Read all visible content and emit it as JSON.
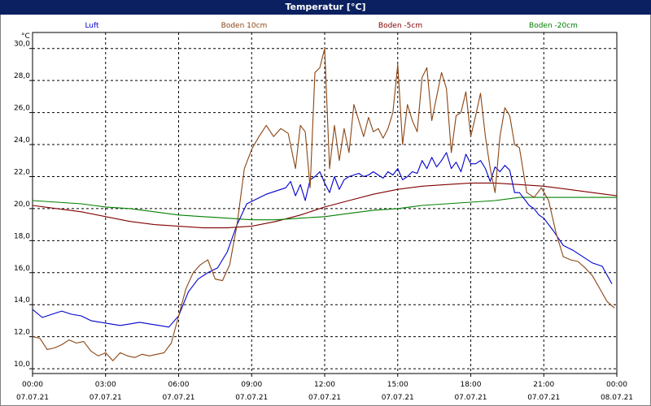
{
  "window_title": "Temperatur [°C]",
  "chart_data": {
    "type": "line",
    "title": "Temperatur [°C]",
    "ylabel": "°C",
    "ylim": [
      9.7,
      31.0
    ],
    "yticks": [
      "10,0",
      "12,0",
      "14,0",
      "16,0",
      "18,0",
      "20,0",
      "22,0",
      "24,0",
      "26,0",
      "28,0",
      "30,0"
    ],
    "ytick_values": [
      10,
      12,
      14,
      16,
      18,
      20,
      22,
      24,
      26,
      28,
      30
    ],
    "xlim": [
      0,
      24
    ],
    "xticks": [
      {
        "time": "00:00",
        "date": "07.07.21"
      },
      {
        "time": "03:00",
        "date": "07.07.21"
      },
      {
        "time": "06:00",
        "date": "07.07.21"
      },
      {
        "time": "09:00",
        "date": "07.07.21"
      },
      {
        "time": "12:00",
        "date": "07.07.21"
      },
      {
        "time": "15:00",
        "date": "07.07.21"
      },
      {
        "time": "18:00",
        "date": "07.07.21"
      },
      {
        "time": "21:00",
        "date": "07.07.21"
      },
      {
        "time": "00:00",
        "date": "08.07.21"
      }
    ],
    "grid": true,
    "legend_placement": "top",
    "series": [
      {
        "name": "Luft",
        "color": "#0000cc",
        "x": [
          0,
          0.4,
          0.8,
          1.2,
          1.6,
          2.0,
          2.4,
          2.8,
          3.2,
          3.6,
          4.0,
          4.4,
          4.8,
          5.2,
          5.6,
          6.0,
          6.4,
          6.8,
          7.2,
          7.6,
          8.0,
          8.4,
          8.8,
          9.2,
          9.6,
          10.0,
          10.4,
          10.6,
          10.8,
          11.0,
          11.2,
          11.4,
          11.6,
          11.8,
          12.0,
          12.2,
          12.4,
          12.6,
          12.8,
          13.0,
          13.2,
          13.4,
          13.6,
          13.8,
          14.0,
          14.2,
          14.4,
          14.6,
          14.8,
          15.0,
          15.2,
          15.4,
          15.6,
          15.8,
          16.0,
          16.2,
          16.4,
          16.6,
          16.8,
          17.0,
          17.2,
          17.4,
          17.6,
          17.8,
          18.0,
          18.2,
          18.4,
          18.6,
          18.8,
          19.0,
          19.2,
          19.4,
          19.6,
          19.8,
          20.0,
          20.2,
          20.4,
          20.6,
          20.8,
          21.0,
          21.4,
          21.8,
          22.2,
          22.6,
          23.0,
          23.4,
          23.8
        ],
        "values": [
          13.7,
          13.2,
          13.4,
          13.6,
          13.4,
          13.3,
          13.0,
          12.9,
          12.8,
          12.7,
          12.8,
          12.9,
          12.8,
          12.7,
          12.6,
          13.3,
          14.8,
          15.6,
          16.0,
          16.3,
          17.3,
          19.0,
          20.3,
          20.6,
          20.9,
          21.1,
          21.3,
          21.7,
          20.8,
          21.5,
          20.5,
          21.8,
          22.0,
          22.3,
          21.6,
          21.0,
          22.0,
          21.2,
          21.8,
          22.0,
          22.1,
          22.2,
          22.0,
          22.1,
          22.3,
          22.1,
          21.9,
          22.3,
          22.1,
          22.5,
          21.8,
          22.0,
          22.3,
          22.2,
          23.0,
          22.5,
          23.2,
          22.6,
          23.0,
          23.5,
          22.5,
          22.9,
          22.3,
          23.4,
          22.8,
          22.8,
          23.0,
          22.5,
          21.7,
          22.6,
          22.3,
          22.7,
          22.4,
          21.0,
          21.0,
          20.6,
          20.2,
          20.0,
          19.6,
          19.4,
          18.6,
          17.7,
          17.4,
          17.0,
          16.6,
          16.4,
          15.3
        ]
      },
      {
        "name": "Boden 10cm",
        "color": "#8b4513",
        "x": [
          0,
          0.3,
          0.6,
          0.9,
          1.2,
          1.5,
          1.8,
          2.1,
          2.4,
          2.7,
          3.0,
          3.3,
          3.6,
          3.9,
          4.2,
          4.5,
          4.8,
          5.1,
          5.4,
          5.7,
          6.0,
          6.3,
          6.6,
          6.9,
          7.2,
          7.5,
          7.8,
          8.1,
          8.4,
          8.7,
          9.0,
          9.3,
          9.6,
          9.9,
          10.2,
          10.5,
          10.8,
          11.0,
          11.2,
          11.4,
          11.6,
          11.8,
          12.0,
          12.2,
          12.4,
          12.6,
          12.8,
          13.0,
          13.2,
          13.4,
          13.6,
          13.8,
          14.0,
          14.2,
          14.4,
          14.6,
          14.8,
          15.0,
          15.2,
          15.4,
          15.6,
          15.8,
          16.0,
          16.2,
          16.4,
          16.6,
          16.8,
          17.0,
          17.2,
          17.4,
          17.6,
          17.8,
          18.0,
          18.2,
          18.4,
          18.6,
          18.8,
          19.0,
          19.2,
          19.4,
          19.6,
          19.8,
          20.0,
          20.3,
          20.6,
          20.9,
          21.2,
          21.5,
          21.8,
          22.1,
          22.4,
          22.7,
          23.0,
          23.3,
          23.6,
          23.9
        ],
        "values": [
          12.0,
          11.9,
          11.2,
          11.3,
          11.5,
          11.8,
          11.6,
          11.7,
          11.1,
          10.8,
          11.0,
          10.5,
          11.0,
          10.8,
          10.7,
          10.9,
          10.8,
          10.9,
          11.0,
          11.6,
          13.3,
          15.0,
          16.0,
          16.5,
          16.8,
          15.6,
          15.5,
          16.5,
          19.0,
          22.5,
          23.7,
          24.5,
          25.2,
          24.5,
          25.0,
          24.7,
          22.5,
          25.2,
          24.8,
          21.3,
          28.5,
          28.8,
          30.0,
          22.5,
          25.2,
          23.0,
          25.0,
          23.5,
          26.5,
          25.5,
          24.5,
          25.7,
          24.8,
          25.0,
          24.4,
          25.0,
          26.0,
          29.0,
          24.0,
          26.5,
          25.5,
          24.8,
          28.2,
          28.8,
          25.5,
          27.0,
          28.5,
          27.5,
          23.5,
          25.8,
          26.0,
          27.3,
          24.5,
          25.8,
          27.2,
          24.5,
          22.5,
          21.0,
          24.5,
          26.3,
          25.8,
          24.0,
          23.8,
          21.0,
          20.7,
          21.3,
          20.5,
          18.5,
          17.0,
          16.8,
          16.7,
          16.3,
          15.8,
          15.0,
          14.2,
          13.8
        ]
      },
      {
        "name": "Boden -5cm",
        "color": "#800000",
        "x": [
          0,
          1,
          2,
          3,
          4,
          5,
          6,
          7,
          8,
          9,
          10,
          11,
          12,
          13,
          14,
          15,
          16,
          17,
          18,
          19,
          20,
          21,
          22,
          23,
          24
        ],
        "values": [
          20.2,
          20.0,
          19.8,
          19.5,
          19.2,
          19.0,
          18.9,
          18.8,
          18.8,
          18.9,
          19.2,
          19.6,
          20.1,
          20.5,
          20.9,
          21.2,
          21.4,
          21.5,
          21.6,
          21.6,
          21.5,
          21.4,
          21.2,
          21.0,
          20.8
        ]
      },
      {
        "name": "Boden -20cm",
        "color": "#008000",
        "x": [
          0,
          1,
          2,
          3,
          4,
          5,
          6,
          7,
          8,
          9,
          10,
          11,
          12,
          13,
          14,
          15,
          16,
          17,
          18,
          19,
          20,
          21,
          22,
          23,
          24
        ],
        "values": [
          20.5,
          20.4,
          20.3,
          20.1,
          20.0,
          19.8,
          19.6,
          19.5,
          19.4,
          19.3,
          19.3,
          19.4,
          19.5,
          19.7,
          19.9,
          20.0,
          20.2,
          20.3,
          20.4,
          20.5,
          20.7,
          20.7,
          20.7,
          20.7,
          20.7
        ]
      }
    ]
  }
}
